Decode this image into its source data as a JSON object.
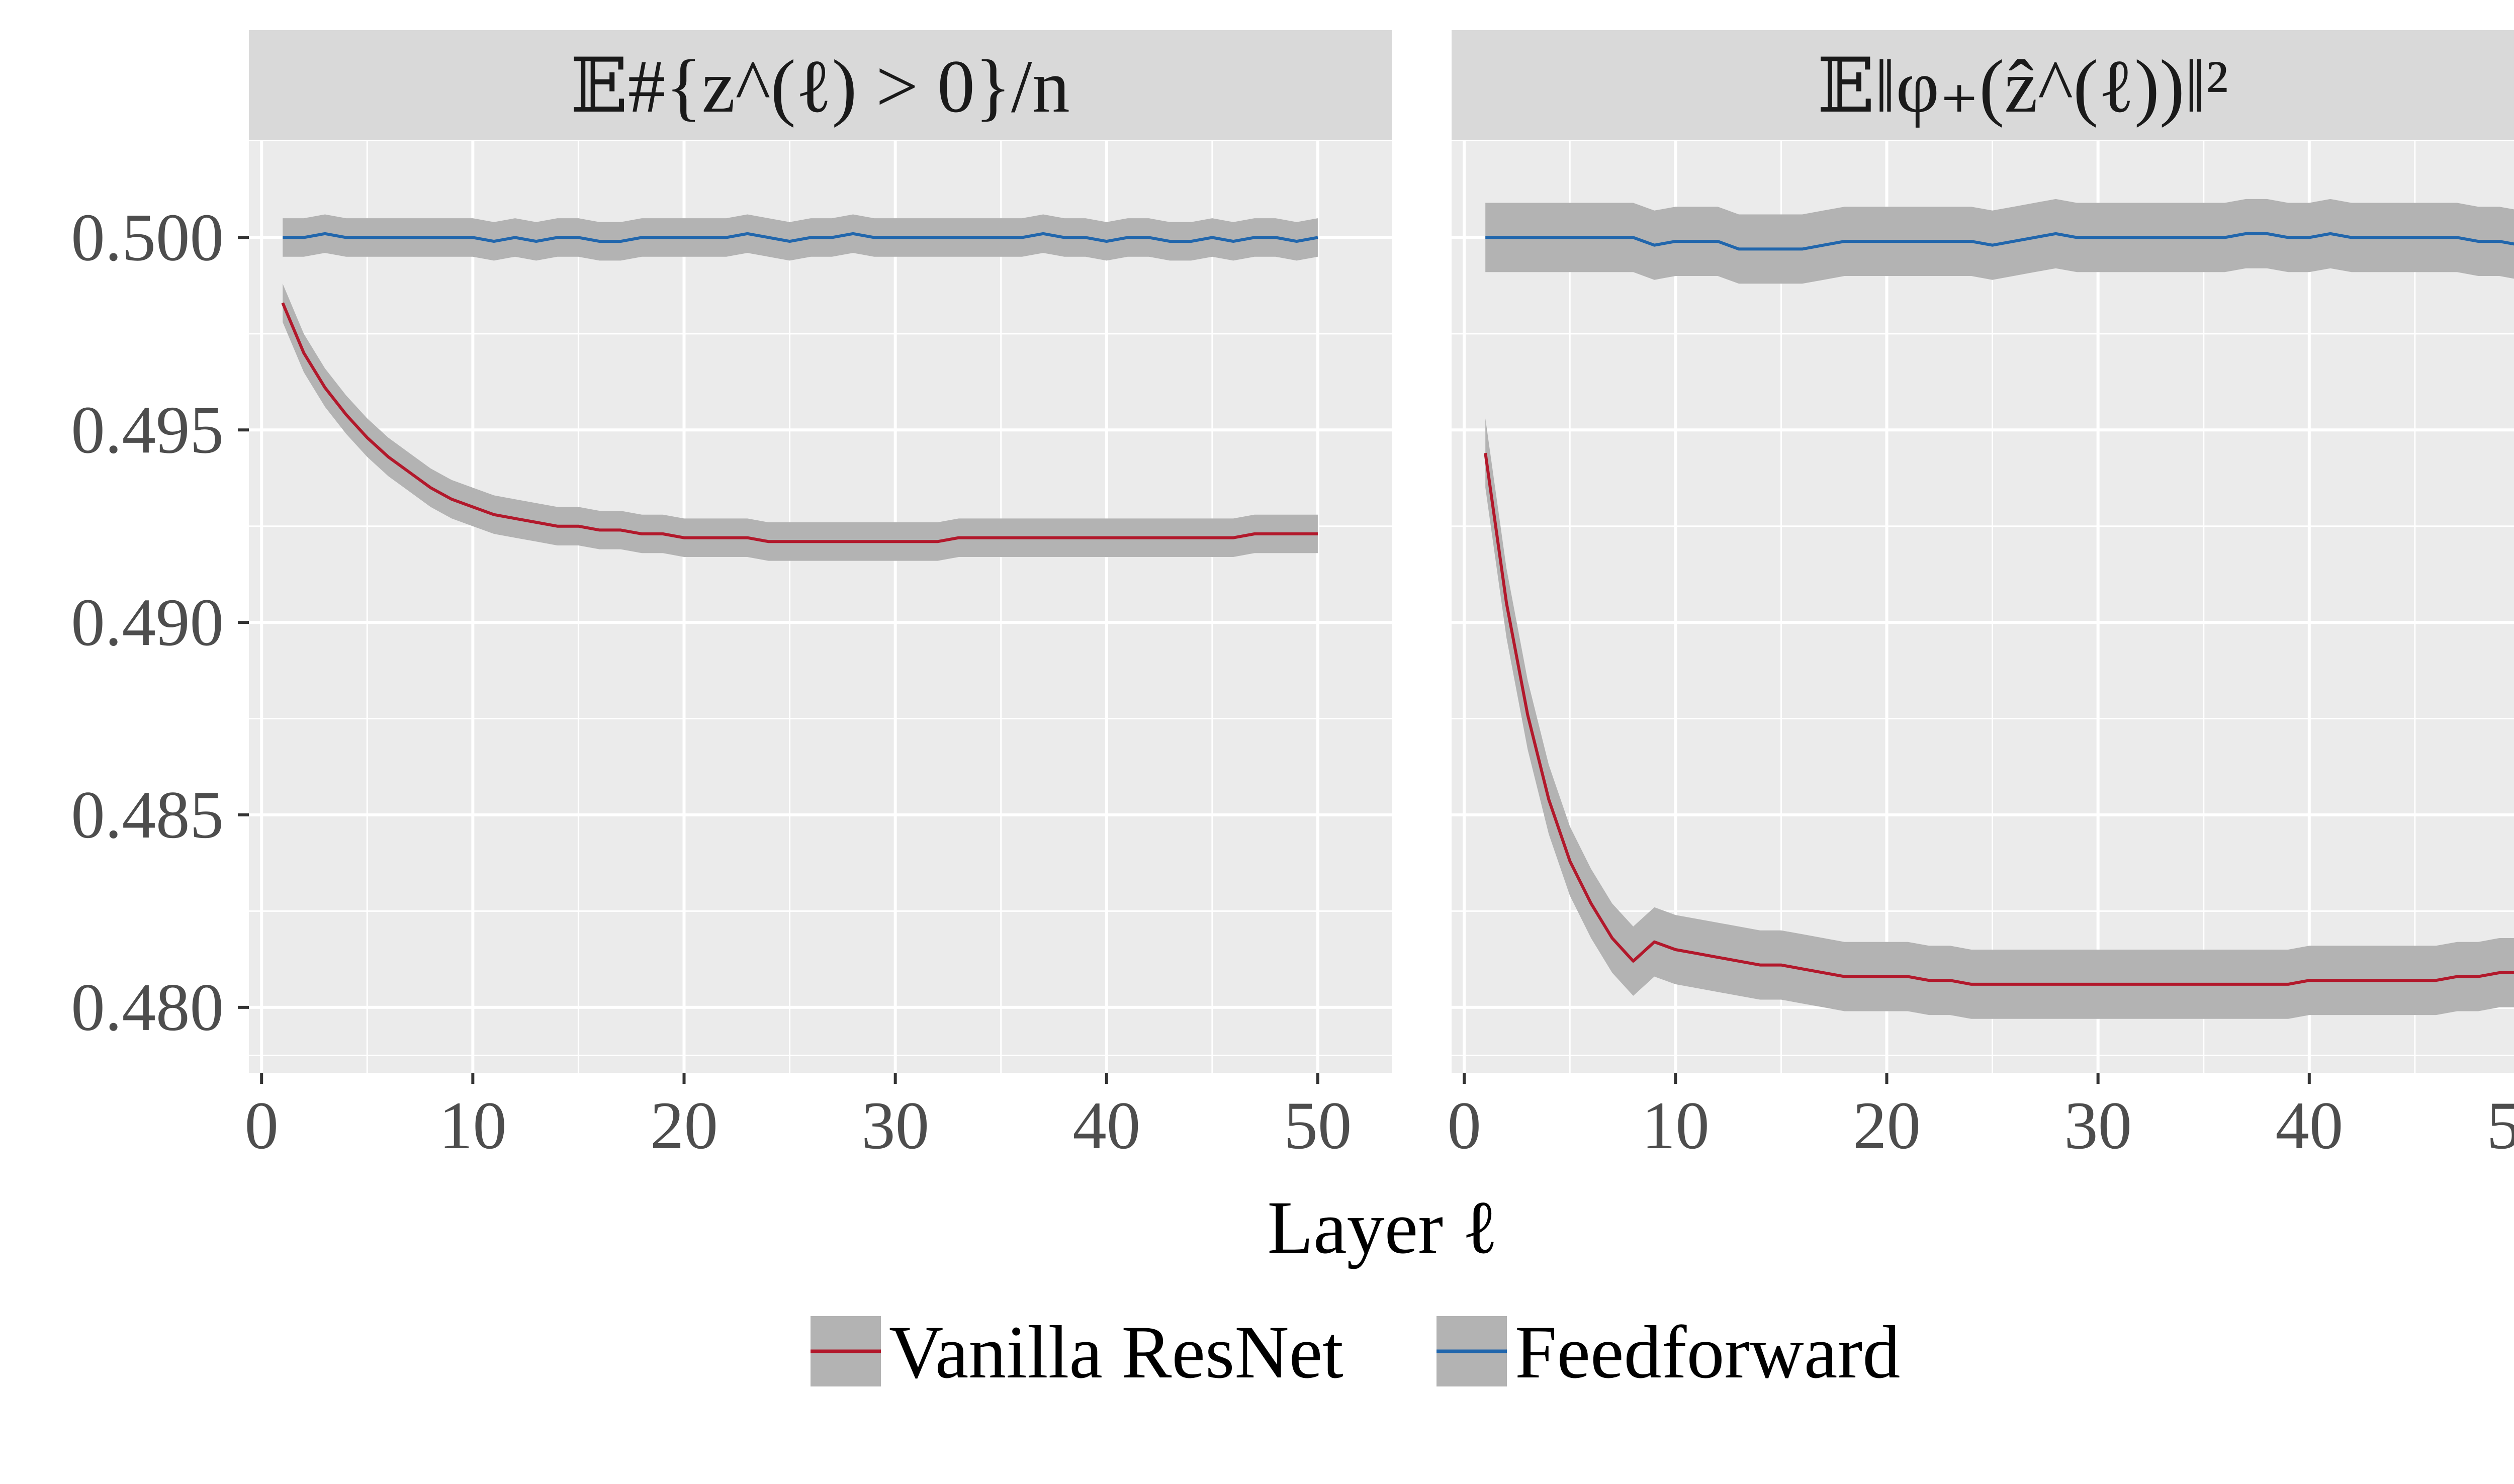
{
  "chart_data": {
    "type": "line",
    "colors": {
      "vanilla": "#b2182b",
      "feedforward": "#2166ac",
      "band": "#b3b3b3",
      "panel": "#ebebeb",
      "strip": "#d9d9d9",
      "grid": "#ffffff",
      "text": "#4d4d4d"
    },
    "xlabel": "Layer ℓ",
    "xlim": [
      -0.6,
      53.5
    ],
    "ylim": [
      0.4783,
      0.5025
    ],
    "xticks": [
      0,
      10,
      20,
      30,
      40,
      50
    ],
    "xtick_labels": [
      "0",
      "10",
      "20",
      "30",
      "40",
      "50"
    ],
    "yticks": [
      0.48,
      0.485,
      0.49,
      0.495,
      0.5
    ],
    "ytick_labels": [
      "0.480",
      "0.485",
      "0.490",
      "0.495",
      "0.500"
    ],
    "grid": true,
    "legend": {
      "position": "bottom",
      "items": [
        "Vanilla ResNet",
        "Feedforward"
      ]
    },
    "x": [
      1,
      2,
      3,
      4,
      5,
      6,
      7,
      8,
      9,
      10,
      11,
      12,
      13,
      14,
      15,
      16,
      17,
      18,
      19,
      20,
      21,
      22,
      23,
      24,
      25,
      26,
      27,
      28,
      29,
      30,
      31,
      32,
      33,
      34,
      35,
      36,
      37,
      38,
      39,
      40,
      41,
      42,
      43,
      44,
      45,
      46,
      47,
      48,
      49,
      50
    ],
    "panels": [
      {
        "title": "𝔼#{z^(ℓ) > 0}/n",
        "series": [
          {
            "name": "Vanilla ResNet",
            "color": "#b2182b",
            "band": 0.0005,
            "values": [
              0.4983,
              0.497,
              0.4961,
              0.4954,
              0.4948,
              0.4943,
              0.4939,
              0.4935,
              0.4932,
              0.493,
              0.4928,
              0.4927,
              0.4926,
              0.4925,
              0.4925,
              0.4924,
              0.4924,
              0.4923,
              0.4923,
              0.4922,
              0.4922,
              0.4922,
              0.4922,
              0.4921,
              0.4921,
              0.4921,
              0.4921,
              0.4921,
              0.4921,
              0.4921,
              0.4921,
              0.4921,
              0.4922,
              0.4922,
              0.4922,
              0.4922,
              0.4922,
              0.4922,
              0.4922,
              0.4922,
              0.4922,
              0.4922,
              0.4922,
              0.4922,
              0.4922,
              0.4922,
              0.4923,
              0.4923,
              0.4923,
              0.4923
            ]
          },
          {
            "name": "Feedforward",
            "color": "#2166ac",
            "band": 0.0005,
            "values": [
              0.5,
              0.5,
              0.5001,
              0.5,
              0.5,
              0.5,
              0.5,
              0.5,
              0.5,
              0.5,
              0.4999,
              0.5,
              0.4999,
              0.5,
              0.5,
              0.4999,
              0.4999,
              0.5,
              0.5,
              0.5,
              0.5,
              0.5,
              0.5001,
              0.5,
              0.4999,
              0.5,
              0.5,
              0.5001,
              0.5,
              0.5,
              0.5,
              0.5,
              0.5,
              0.5,
              0.5,
              0.5,
              0.5001,
              0.5,
              0.5,
              0.4999,
              0.5,
              0.5,
              0.4999,
              0.4999,
              0.5,
              0.4999,
              0.5,
              0.5,
              0.4999,
              0.5
            ]
          }
        ]
      },
      {
        "title": "𝔼‖φ₊(ẑ^(ℓ))‖²",
        "series": [
          {
            "name": "Vanilla ResNet",
            "color": "#b2182b",
            "band": 0.0009,
            "values": [
              0.4944,
              0.4905,
              0.4876,
              0.4854,
              0.4838,
              0.4827,
              0.4818,
              0.4812,
              0.4817,
              0.4815,
              0.4814,
              0.4813,
              0.4812,
              0.4811,
              0.4811,
              0.481,
              0.4809,
              0.4808,
              0.4808,
              0.4808,
              0.4808,
              0.4807,
              0.4807,
              0.4806,
              0.4806,
              0.4806,
              0.4806,
              0.4806,
              0.4806,
              0.4806,
              0.4806,
              0.4806,
              0.4806,
              0.4806,
              0.4806,
              0.4806,
              0.4806,
              0.4806,
              0.4806,
              0.4807,
              0.4807,
              0.4807,
              0.4807,
              0.4807,
              0.4807,
              0.4807,
              0.4808,
              0.4808,
              0.4809,
              0.4809
            ]
          },
          {
            "name": "Feedforward",
            "color": "#2166ac",
            "band": 0.0009,
            "values": [
              0.5,
              0.5,
              0.5,
              0.5,
              0.5,
              0.5,
              0.5,
              0.5,
              0.4998,
              0.4999,
              0.4999,
              0.4999,
              0.4997,
              0.4997,
              0.4997,
              0.4997,
              0.4998,
              0.4999,
              0.4999,
              0.4999,
              0.4999,
              0.4999,
              0.4999,
              0.4999,
              0.4998,
              0.4999,
              0.5,
              0.5001,
              0.5,
              0.5,
              0.5,
              0.5,
              0.5,
              0.5,
              0.5,
              0.5,
              0.5001,
              0.5001,
              0.5,
              0.5,
              0.5001,
              0.5,
              0.5,
              0.5,
              0.5,
              0.5,
              0.5,
              0.4999,
              0.4999,
              0.4998
            ]
          }
        ]
      }
    ]
  }
}
